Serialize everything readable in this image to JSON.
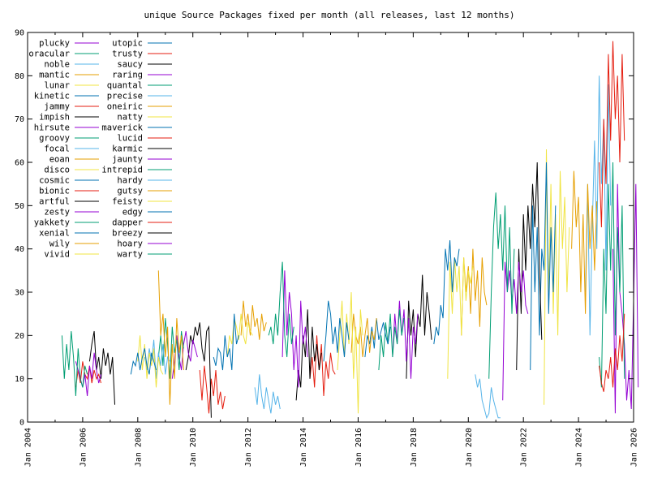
{
  "chart_data": {
    "type": "line",
    "title": "unique Source Packages fixed per month (all releases, last 12 months)",
    "xlabel": "",
    "ylabel": "",
    "x_unit": "date",
    "xlim": [
      "2004-01",
      "2026-01"
    ],
    "ylim": [
      0,
      90
    ],
    "x_ticks": [
      "Jan 2004",
      "Jan 2006",
      "Jan 2008",
      "Jan 2010",
      "Jan 2012",
      "Jan 2014",
      "Jan 2016",
      "Jan 2018",
      "Jan 2020",
      "Jan 2022",
      "Jan 2024",
      "Jan 2026"
    ],
    "y_ticks": [
      0,
      10,
      20,
      30,
      40,
      50,
      60,
      70,
      80,
      90
    ],
    "grid": false,
    "legend_position": "top-left",
    "series": [
      {
        "name": "plucky",
        "color": "#9400d3",
        "start": "2025-04",
        "values": [
          40,
          2,
          55,
          30,
          25,
          18,
          5,
          12,
          3,
          28,
          55,
          8
        ]
      },
      {
        "name": "oracular",
        "color": "#009e73",
        "start": "2024-10",
        "values": [
          15,
          8,
          40,
          25,
          55,
          35,
          60,
          20,
          45,
          30,
          50,
          10
        ]
      },
      {
        "name": "noble",
        "color": "#56b4e9",
        "start": "2024-04",
        "values": [
          30,
          55,
          20,
          45,
          65,
          40,
          80,
          55,
          70,
          35,
          78,
          50
        ]
      },
      {
        "name": "mantic",
        "color": "#e69f00",
        "start": "2023-10",
        "values": [
          40,
          58,
          45,
          52,
          30,
          48,
          25,
          55,
          40,
          50,
          35,
          51
        ]
      },
      {
        "name": "lunar",
        "color": "#f0e442",
        "start": "2022-10",
        "values": [
          4,
          63,
          30,
          55,
          25,
          48,
          20,
          58,
          40,
          52,
          30,
          45
        ]
      },
      {
        "name": "kinetic",
        "color": "#0072b2",
        "start": "2022-04",
        "values": [
          12,
          50,
          30,
          45,
          20,
          40,
          35,
          60,
          25,
          45,
          30,
          50
        ]
      },
      {
        "name": "jammy",
        "color": "#e51e10",
        "start": "2024-10",
        "values": [
          60,
          45,
          70,
          55,
          85,
          65,
          88,
          70,
          80,
          60,
          85,
          65
        ]
      },
      {
        "name": "impish",
        "color": "#000000",
        "start": "2021-10",
        "values": [
          12,
          40,
          25,
          48,
          35,
          50,
          40,
          55,
          45,
          60,
          35,
          19
        ]
      },
      {
        "name": "hirsute",
        "color": "#9400d3",
        "start": "2021-04",
        "values": [
          5,
          37,
          30,
          35,
          28,
          33,
          25,
          37,
          30,
          35,
          27,
          25
        ]
      },
      {
        "name": "groovy",
        "color": "#009e73",
        "start": "2020-10",
        "values": [
          10,
          30,
          45,
          53,
          40,
          48,
          35,
          50,
          30,
          45,
          25,
          40
        ]
      },
      {
        "name": "focal",
        "color": "#56b4e9",
        "start": "2020-04",
        "values": [
          11,
          8,
          10,
          5,
          3,
          1,
          2,
          8,
          5,
          3,
          1,
          1
        ]
      },
      {
        "name": "eoan",
        "color": "#e69f00",
        "start": "2019-10",
        "values": [
          20,
          38,
          30,
          36,
          25,
          40,
          28,
          35,
          22,
          38,
          30,
          27
        ]
      },
      {
        "name": "disco",
        "color": "#f0e442",
        "start": "2019-04",
        "values": [
          10,
          37,
          25,
          38,
          30,
          36,
          20,
          38,
          28,
          35,
          32,
          36
        ]
      },
      {
        "name": "cosmic",
        "color": "#0072b2",
        "start": "2018-10",
        "values": [
          18,
          22,
          20,
          27,
          24,
          40,
          35,
          42,
          30,
          38,
          36,
          40
        ]
      },
      {
        "name": "bionic",
        "color": "#e51e10",
        "start": "2024-10",
        "values": [
          13,
          9,
          7,
          12,
          10,
          15,
          8,
          17,
          12,
          20,
          14,
          25
        ]
      },
      {
        "name": "artful",
        "color": "#000000",
        "start": "2017-10",
        "values": [
          10,
          28,
          20,
          26,
          15,
          25,
          22,
          34,
          20,
          30,
          25,
          19
        ]
      },
      {
        "name": "zesty",
        "color": "#9400d3",
        "start": "2017-04",
        "values": [
          15,
          25,
          18,
          28,
          20,
          26,
          14,
          24,
          10,
          22,
          18,
          25
        ]
      },
      {
        "name": "yakkety",
        "color": "#009e73",
        "start": "2016-10",
        "values": [
          12,
          20,
          15,
          23,
          18,
          25,
          15,
          22,
          18,
          26,
          20,
          24
        ]
      },
      {
        "name": "xenial",
        "color": "#0072b2",
        "start": "2016-04",
        "values": [
          15,
          20,
          18,
          22,
          17,
          24,
          19,
          21,
          23,
          20,
          18,
          22
        ]
      },
      {
        "name": "wily",
        "color": "#e69f00",
        "start": "2015-10",
        "values": [
          16,
          25,
          20,
          18,
          22,
          15,
          20,
          24,
          16,
          21,
          19,
          24
        ]
      },
      {
        "name": "vivid",
        "color": "#f0e442",
        "start": "2015-04",
        "values": [
          12,
          20,
          28,
          15,
          25,
          18,
          30,
          10,
          22,
          2,
          26,
          20
        ]
      },
      {
        "name": "utopic",
        "color": "#0072b2",
        "start": "2014-10",
        "values": [
          14,
          20,
          28,
          25,
          18,
          22,
          16,
          24,
          20,
          15,
          23,
          19
        ]
      },
      {
        "name": "trusty",
        "color": "#e51e10",
        "start": "2014-04",
        "values": [
          10,
          15,
          8,
          20,
          12,
          18,
          6,
          14,
          10,
          16,
          12,
          11
        ]
      },
      {
        "name": "saucy",
        "color": "#000000",
        "start": "2013-10",
        "values": [
          5,
          12,
          8,
          20,
          15,
          26,
          10,
          22,
          14,
          18,
          12,
          16
        ]
      },
      {
        "name": "raring",
        "color": "#9400d3",
        "start": "2013-04",
        "values": [
          15,
          35,
          20,
          30,
          25,
          12,
          20,
          8,
          28,
          18,
          22,
          15
        ]
      },
      {
        "name": "quantal",
        "color": "#009e73",
        "start": "2012-10",
        "values": [
          20,
          22,
          18,
          25,
          20,
          30,
          37,
          20,
          15,
          25,
          18,
          22
        ]
      },
      {
        "name": "precise",
        "color": "#56b4e9",
        "start": "2012-04",
        "values": [
          8,
          4,
          11,
          6,
          3,
          8,
          5,
          2,
          7,
          4,
          6,
          3
        ]
      },
      {
        "name": "oneiric",
        "color": "#e69f00",
        "start": "2011-10",
        "values": [
          20,
          28,
          22,
          25,
          20,
          27,
          22,
          24,
          19,
          25,
          21,
          23
        ]
      },
      {
        "name": "natty",
        "color": "#f0e442",
        "start": "2011-04",
        "values": [
          15,
          20,
          18,
          24,
          22,
          19,
          25,
          20,
          18,
          23,
          21,
          20
        ]
      },
      {
        "name": "maverick",
        "color": "#0072b2",
        "start": "2010-10",
        "values": [
          15,
          13,
          17,
          16,
          12,
          20,
          15,
          17,
          12,
          25,
          18,
          20
        ]
      },
      {
        "name": "lucid",
        "color": "#e51e10",
        "start": "2010-04",
        "values": [
          12,
          5,
          13,
          8,
          2,
          10,
          6,
          12,
          4,
          7,
          3,
          6
        ]
      },
      {
        "name": "karmic",
        "color": "#000000",
        "start": "2009-10",
        "values": [
          12,
          15,
          20,
          18,
          22,
          20,
          23,
          17,
          14,
          21,
          22,
          1
        ]
      },
      {
        "name": "jaunty",
        "color": "#9400d3",
        "start": "2009-04",
        "values": [
          10,
          14,
          20,
          15,
          12,
          18,
          21,
          16,
          14,
          19,
          17,
          15
        ]
      },
      {
        "name": "intrepid",
        "color": "#009e73",
        "start": "2008-10",
        "values": [
          15,
          20,
          13,
          24,
          18,
          10,
          22,
          16,
          19,
          12,
          21,
          17
        ]
      },
      {
        "name": "hardy",
        "color": "#56b4e9",
        "start": "2008-04",
        "values": [
          15,
          12,
          17,
          14,
          19,
          10,
          16,
          13,
          18,
          11,
          15,
          14
        ]
      },
      {
        "name": "gutsy",
        "color": "#e69f00",
        "start": "2008-10",
        "values": [
          35,
          20,
          25,
          15,
          22,
          4,
          18,
          10,
          24,
          16,
          20,
          12
        ]
      },
      {
        "name": "feisty",
        "color": "#f0e442",
        "start": "2008-01",
        "values": [
          14,
          20,
          12,
          18,
          10,
          16,
          13,
          17,
          8,
          15,
          12,
          11
        ]
      },
      {
        "name": "edgy",
        "color": "#0072b2",
        "start": "2007-10",
        "values": [
          11,
          14,
          13,
          16,
          12,
          15,
          17,
          13,
          11,
          16,
          14,
          12
        ]
      },
      {
        "name": "dapper",
        "color": "#e51e10",
        "start": "2005-10",
        "values": [
          8,
          12,
          9,
          14,
          11,
          10,
          13,
          9,
          12,
          10,
          11,
          9
        ]
      },
      {
        "name": "breezy",
        "color": "#000000",
        "start": "2006-04",
        "values": [
          14,
          18,
          21,
          12,
          15,
          10,
          17,
          13,
          16,
          11,
          15,
          4
        ]
      },
      {
        "name": "hoary",
        "color": "#9400d3",
        "start": "2005-10",
        "values": [
          14,
          12,
          10,
          8,
          11,
          6,
          13,
          10,
          16,
          12,
          9,
          11
        ]
      },
      {
        "name": "warty",
        "color": "#009e73",
        "start": "2005-04",
        "values": [
          20,
          10,
          18,
          12,
          21,
          15,
          6,
          17,
          10,
          8,
          13,
          11
        ]
      }
    ]
  }
}
